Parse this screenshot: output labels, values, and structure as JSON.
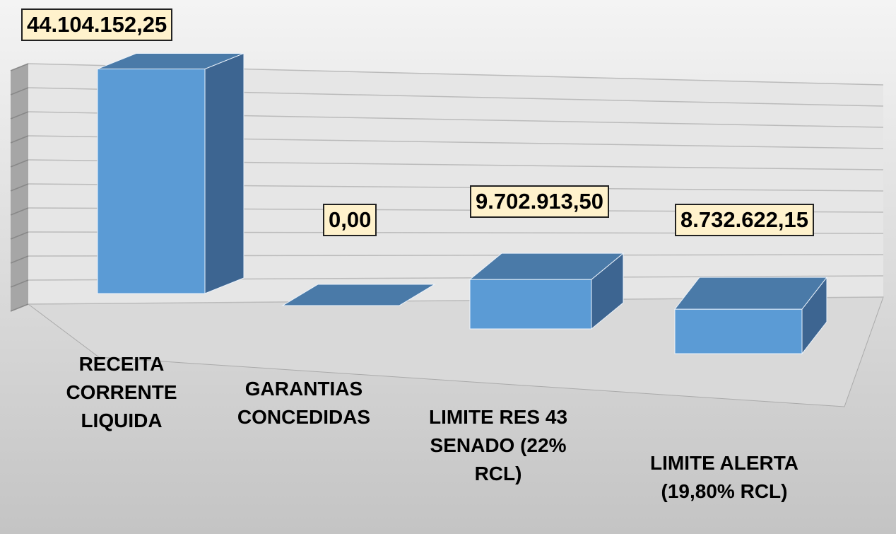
{
  "chart_data": {
    "type": "bar3d",
    "categories": [
      "RECEITA CORRENTE LIQUIDA",
      "GARANTIAS CONCEDIDAS",
      "LIMITE RES 43 SENADO (22% RCL)",
      "LIMITE ALERTA (19,80% RCL)"
    ],
    "values": [
      44104152.25,
      0,
      9702913.5,
      8732622.15
    ],
    "value_labels": [
      "44.104.152,25",
      "0,00",
      "9.702.913,50",
      "8.732.622,15"
    ],
    "color": "#5b9bd5",
    "ylim": [
      0,
      50000000
    ],
    "yticks": [
      0,
      5000000,
      10000000,
      15000000,
      20000000,
      25000000,
      30000000,
      35000000,
      40000000,
      45000000,
      50000000
    ],
    "grid": true
  }
}
